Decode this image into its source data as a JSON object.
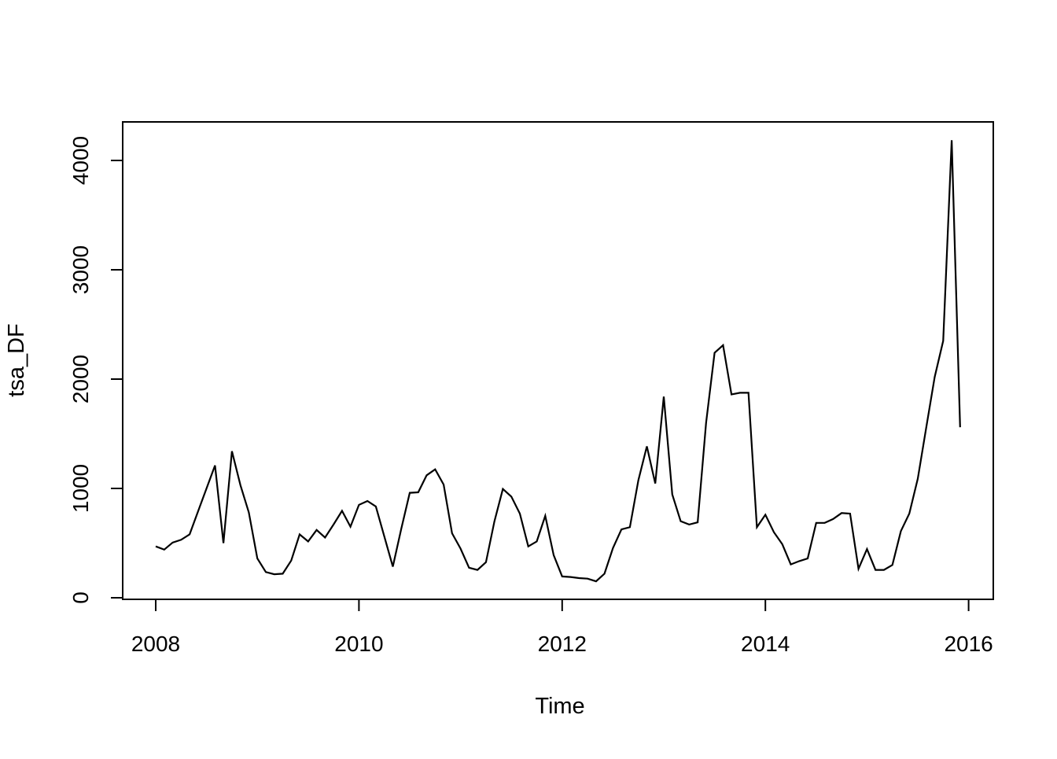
{
  "figure": {
    "background_color": "#ffffff",
    "line_color": "#000000",
    "box_color": "#000000"
  },
  "chart_data": {
    "type": "line",
    "title": "",
    "xlabel": "Time",
    "ylabel": "tsa_DF",
    "x_ticks": [
      2008,
      2010,
      2012,
      2014,
      2016
    ],
    "y_ticks": [
      0,
      1000,
      2000,
      3000,
      4000
    ],
    "xlim": [
      2007.675,
      2016.243
    ],
    "ylim": [
      -15,
      4350
    ],
    "grid": false,
    "legend": "none",
    "series": [
      {
        "name": "tsa_DF",
        "color": "#000000",
        "start_year": 2008,
        "frequency": 12,
        "values": [
          470,
          440,
          505,
          530,
          580,
          790,
          1000,
          1210,
          500,
          1340,
          1030,
          780,
          360,
          235,
          215,
          220,
          340,
          580,
          515,
          620,
          550,
          670,
          795,
          650,
          850,
          885,
          835,
          560,
          285,
          630,
          960,
          965,
          1120,
          1175,
          1035,
          590,
          450,
          275,
          255,
          325,
          700,
          995,
          925,
          770,
          470,
          515,
          750,
          390,
          195,
          190,
          180,
          175,
          150,
          220,
          455,
          625,
          645,
          1075,
          1385,
          1045,
          1840,
          945,
          700,
          670,
          690,
          1600,
          2240,
          2310,
          1860,
          1875,
          1875,
          645,
          760,
          600,
          490,
          305,
          335,
          360,
          685,
          685,
          720,
          775,
          770,
          265,
          445,
          255,
          255,
          300,
          610,
          770,
          1090,
          1560,
          2020,
          2350,
          4185,
          1560
        ]
      }
    ]
  }
}
